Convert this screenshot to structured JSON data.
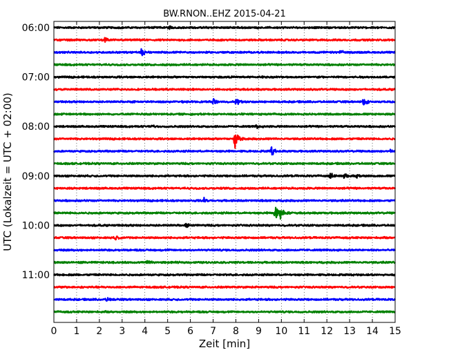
{
  "chart_data": {
    "type": "line",
    "title": "BW.RNON..EHZ 2015-04-21",
    "xlabel": "Zeit  [min]",
    "ylabel": "UTC (Lokalzeit = UTC + 02:00)",
    "xlim": [
      0,
      15
    ],
    "x_ticks": [
      "0",
      "1",
      "2",
      "3",
      "4",
      "5",
      "6",
      "7",
      "8",
      "9",
      "10",
      "11",
      "12",
      "13",
      "14",
      "15"
    ],
    "y_ticks": [
      {
        "label": "06:00",
        "row": 0
      },
      {
        "label": "07:00",
        "row": 4
      },
      {
        "label": "08:00",
        "row": 8
      },
      {
        "label": "09:00",
        "row": 12
      },
      {
        "label": "10:00",
        "row": 16
      },
      {
        "label": "11:00",
        "row": 20
      }
    ],
    "grid": true,
    "colors": [
      "#000000",
      "#ff0000",
      "#0000ff",
      "#008000"
    ],
    "traces": [
      {
        "start": "06:00",
        "color": "#000000",
        "events": [
          {
            "t": 5.05,
            "amp": 0.3
          }
        ]
      },
      {
        "start": "06:15",
        "color": "#ff0000",
        "events": [
          {
            "t": 2.25,
            "amp": 0.5
          }
        ]
      },
      {
        "start": "06:30",
        "color": "#0000ff",
        "events": [
          {
            "t": 3.85,
            "amp": 0.75
          },
          {
            "t": 12.6,
            "amp": 0.35
          }
        ]
      },
      {
        "start": "06:45",
        "color": "#008000",
        "events": []
      },
      {
        "start": "07:00",
        "color": "#000000",
        "events": []
      },
      {
        "start": "07:15",
        "color": "#ff0000",
        "events": []
      },
      {
        "start": "07:30",
        "color": "#0000ff",
        "events": [
          {
            "t": 7.0,
            "amp": 0.5
          },
          {
            "t": 8.0,
            "amp": 0.6
          },
          {
            "t": 13.6,
            "amp": 0.6
          }
        ]
      },
      {
        "start": "07:45",
        "color": "#008000",
        "events": []
      },
      {
        "start": "08:00",
        "color": "#000000",
        "events": [
          {
            "t": 4.3,
            "amp": 0.3
          },
          {
            "t": 8.9,
            "amp": 0.3
          }
        ]
      },
      {
        "start": "08:15",
        "color": "#ff0000",
        "events": [
          {
            "t": 7.95,
            "amp": 1.8
          }
        ]
      },
      {
        "start": "08:30",
        "color": "#0000ff",
        "events": [
          {
            "t": 9.55,
            "amp": 0.8
          },
          {
            "t": 14.8,
            "amp": 0.35
          }
        ]
      },
      {
        "start": "08:45",
        "color": "#008000",
        "events": []
      },
      {
        "start": "09:00",
        "color": "#000000",
        "events": [
          {
            "t": 12.15,
            "amp": 0.5
          },
          {
            "t": 12.75,
            "amp": 0.55
          },
          {
            "t": 13.3,
            "amp": 0.45
          }
        ]
      },
      {
        "start": "09:15",
        "color": "#ff0000",
        "events": []
      },
      {
        "start": "09:30",
        "color": "#0000ff",
        "events": [
          {
            "t": 6.6,
            "amp": 0.4
          }
        ]
      },
      {
        "start": "09:45",
        "color": "#008000",
        "events": [
          {
            "t": 9.7,
            "amp": 1.4
          },
          {
            "t": 9.95,
            "amp": 1.2
          }
        ]
      },
      {
        "start": "10:00",
        "color": "#000000",
        "events": [
          {
            "t": 5.8,
            "amp": 0.35
          }
        ]
      },
      {
        "start": "10:15",
        "color": "#ff0000",
        "events": [
          {
            "t": 2.7,
            "amp": 0.4
          }
        ]
      },
      {
        "start": "10:30",
        "color": "#0000ff",
        "events": []
      },
      {
        "start": "10:45",
        "color": "#008000",
        "events": [
          {
            "t": 4.1,
            "amp": 0.35
          }
        ]
      },
      {
        "start": "11:00",
        "color": "#000000",
        "events": []
      },
      {
        "start": "11:15",
        "color": "#ff0000",
        "events": []
      },
      {
        "start": "11:30",
        "color": "#0000ff",
        "events": [
          {
            "t": 2.3,
            "amp": 0.3
          }
        ]
      },
      {
        "start": "11:45",
        "color": "#008000",
        "events": []
      }
    ]
  }
}
